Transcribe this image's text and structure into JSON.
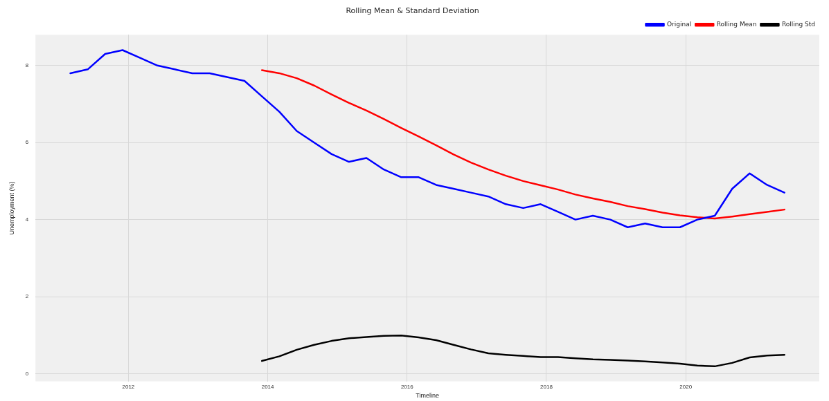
{
  "chart_data": {
    "type": "line",
    "title": "Rolling Mean & Standard Deviation",
    "xlabel": "Timeline",
    "ylabel": "Unemployment (%)",
    "xlim": [
      "2010-09",
      "2021-12"
    ],
    "xticks": [
      "2012",
      "2014",
      "2016",
      "2018",
      "2020"
    ],
    "ylim": [
      -0.2,
      8.8
    ],
    "yticks": [
      0,
      2,
      4,
      6,
      8
    ],
    "grid": true,
    "legend": "top right",
    "marker": "none",
    "line_style": "solid",
    "series": [
      {
        "name": "Original",
        "color": "#0000ff",
        "x": [
          "2011-03",
          "2011-06",
          "2011-09",
          "2011-12",
          "2012-03",
          "2012-06",
          "2012-09",
          "2012-12",
          "2013-03",
          "2013-06",
          "2013-09",
          "2013-12",
          "2014-03",
          "2014-06",
          "2014-09",
          "2014-12",
          "2015-03",
          "2015-06",
          "2015-09",
          "2015-12",
          "2016-03",
          "2016-06",
          "2016-09",
          "2016-12",
          "2017-03",
          "2017-06",
          "2017-09",
          "2017-12",
          "2018-03",
          "2018-06",
          "2018-09",
          "2018-12",
          "2019-03",
          "2019-06",
          "2019-09",
          "2019-12",
          "2020-03",
          "2020-06",
          "2020-09",
          "2020-12",
          "2021-03",
          "2021-06"
        ],
        "values": [
          7.8,
          7.9,
          8.3,
          8.4,
          8.2,
          8.0,
          7.9,
          7.8,
          7.8,
          7.7,
          7.6,
          7.2,
          6.8,
          6.3,
          6.0,
          5.7,
          5.5,
          5.6,
          5.3,
          5.1,
          5.1,
          4.9,
          4.8,
          4.7,
          4.6,
          4.4,
          4.3,
          4.4,
          4.2,
          4.0,
          4.1,
          4.0,
          3.8,
          3.9,
          3.8,
          3.8,
          4.0,
          4.1,
          4.8,
          5.2,
          4.9,
          4.7
        ]
      },
      {
        "name": "Rolling Mean",
        "color": "#ff0000",
        "x": [
          "2013-12",
          "2014-03",
          "2014-06",
          "2014-09",
          "2014-12",
          "2015-03",
          "2015-06",
          "2015-09",
          "2015-12",
          "2016-03",
          "2016-06",
          "2016-09",
          "2016-12",
          "2017-03",
          "2017-06",
          "2017-09",
          "2017-12",
          "2018-03",
          "2018-06",
          "2018-09",
          "2018-12",
          "2019-03",
          "2019-06",
          "2019-09",
          "2019-12",
          "2020-03",
          "2020-06",
          "2020-09",
          "2020-12",
          "2021-03",
          "2021-06"
        ],
        "values": [
          7.88,
          7.8,
          7.67,
          7.48,
          7.25,
          7.03,
          6.83,
          6.61,
          6.38,
          6.16,
          5.93,
          5.69,
          5.48,
          5.3,
          5.14,
          5.0,
          4.89,
          4.78,
          4.65,
          4.55,
          4.46,
          4.35,
          4.27,
          4.18,
          4.11,
          4.06,
          4.03,
          4.08,
          4.14,
          4.2,
          4.26
        ]
      },
      {
        "name": "Rolling Std",
        "color": "#000000",
        "x": [
          "2013-12",
          "2014-03",
          "2014-06",
          "2014-09",
          "2014-12",
          "2015-03",
          "2015-06",
          "2015-09",
          "2015-12",
          "2016-03",
          "2016-06",
          "2016-09",
          "2016-12",
          "2017-03",
          "2017-06",
          "2017-09",
          "2017-12",
          "2018-03",
          "2018-06",
          "2018-09",
          "2018-12",
          "2019-03",
          "2019-06",
          "2019-09",
          "2019-12",
          "2020-03",
          "2020-06",
          "2020-09",
          "2020-12",
          "2021-03",
          "2021-06"
        ],
        "values": [
          0.33,
          0.45,
          0.62,
          0.75,
          0.85,
          0.92,
          0.95,
          0.98,
          0.99,
          0.94,
          0.87,
          0.75,
          0.63,
          0.53,
          0.49,
          0.46,
          0.43,
          0.43,
          0.4,
          0.37,
          0.36,
          0.34,
          0.32,
          0.29,
          0.26,
          0.21,
          0.19,
          0.28,
          0.42,
          0.47,
          0.49
        ]
      }
    ]
  }
}
